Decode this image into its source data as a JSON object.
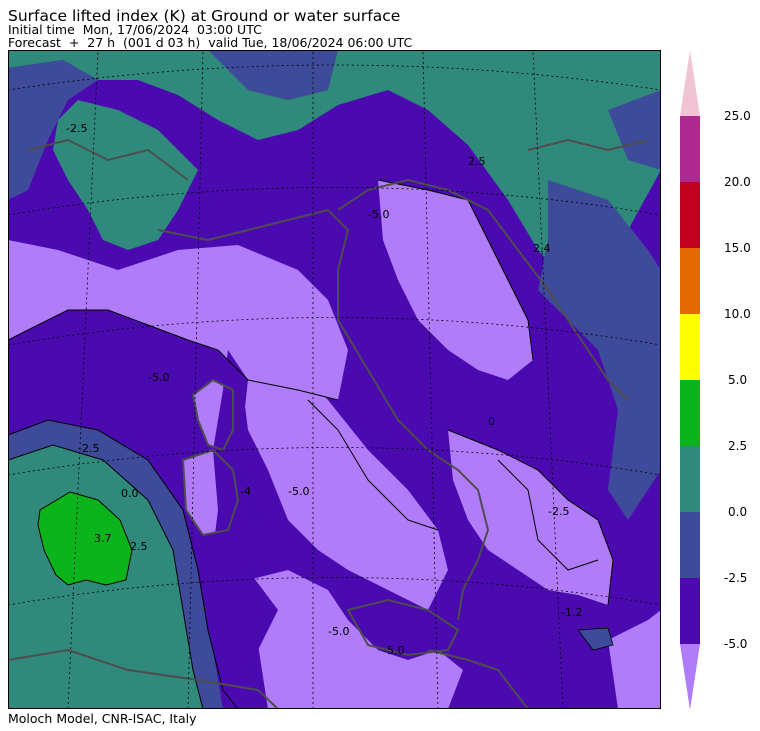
{
  "header": {
    "title": "Surface lifted index (K) at Ground or water surface",
    "initial_time": "Initial time  Mon, 17/06/2024  03:00 UTC",
    "forecast": "Forecast  +  27 h  (001 d 03 h)  valid Tue, 18/06/2024 06:00 UTC"
  },
  "footer": {
    "credit": "Moloch Model, CNR-ISAC, Italy"
  },
  "colorbar": {
    "levels": [
      "25.0",
      "20.0",
      "15.0",
      "10.0",
      "5.0",
      "2.5",
      "0.0",
      "-2.5",
      "-5.0"
    ],
    "colors": {
      "above_max": "#f0c4d4",
      "20_25": "#ad2b90",
      "15_20": "#c2001f",
      "10_15": "#e46a00",
      "5_10": "#ffff00",
      "2.5_5": "#0cb41c",
      "0_2.5": "#2f8a7c",
      "-2.5_0": "#3e4a9a",
      "-5_-2.5": "#4a0ab0",
      "below_min": "#b07cfa"
    }
  },
  "map": {
    "contour_labels": [
      "-2.5",
      "-5.0",
      "-2.5",
      "0.0",
      "3.7",
      "2.5",
      "-4",
      "-5.0",
      "-5.0",
      "-2.5",
      "2.4",
      "-1.2",
      "-5.0",
      "0",
      "-5.0",
      "2.5"
    ],
    "colors": {
      "coastline": "#4d4d4d",
      "contour": "#000000",
      "gridline": "#000000"
    }
  }
}
